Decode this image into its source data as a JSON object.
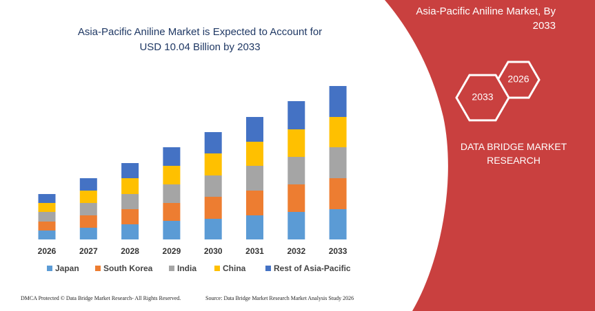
{
  "chart_data": {
    "type": "stacked-bar",
    "title": "Asia-Pacific Aniline Market is Expected to Account for USD 10.04 Billion by 2033",
    "categories": [
      "2026",
      "2027",
      "2028",
      "2029",
      "2030",
      "2031",
      "2032",
      "2033"
    ],
    "series": [
      {
        "name": "Japan",
        "color": "#5b9bd5",
        "values": [
          13,
          17,
          22,
          27,
          30,
          35,
          40,
          44
        ]
      },
      {
        "name": "South Korea",
        "color": "#ed7d31",
        "values": [
          13,
          18,
          22,
          26,
          32,
          36,
          40,
          45
        ]
      },
      {
        "name": "India",
        "color": "#a5a5a5",
        "values": [
          14,
          18,
          22,
          27,
          31,
          36,
          40,
          45
        ]
      },
      {
        "name": "China",
        "color": "#ffc000",
        "values": [
          13,
          18,
          23,
          27,
          32,
          35,
          40,
          44
        ]
      },
      {
        "name": "Rest of Asia-Pacific",
        "color": "#4472c4",
        "values": [
          13,
          18,
          22,
          27,
          31,
          36,
          41,
          45
        ]
      }
    ],
    "ylim": [
      0,
      223
    ]
  },
  "panel_title": "Asia-Pacific Aniline Market, By 2033",
  "hexagons": [
    "2026",
    "2033"
  ],
  "brand": "DATA BRIDGE MARKET RESEARCH",
  "footer": {
    "left": "DMCA Protected © Data Bridge Market Research- All Rights Reserved.",
    "right": "Source: Data Bridge Market Research Market Analysis Study 2026"
  }
}
